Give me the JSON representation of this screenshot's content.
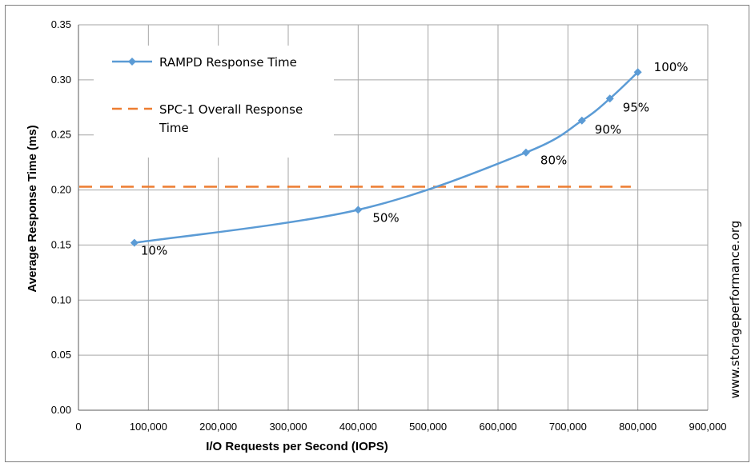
{
  "chart_data": {
    "type": "line",
    "title": "",
    "xlabel": "I/O Requests per Second (IOPS)",
    "ylabel": "Average Response Time (ms)",
    "xlim": [
      0,
      900000
    ],
    "ylim": [
      0,
      0.35
    ],
    "x_ticks": [
      "0",
      "100,000",
      "200,000",
      "300,000",
      "400,000",
      "500,000",
      "600,000",
      "700,000",
      "800,000",
      "900,000"
    ],
    "y_ticks": [
      "0.00",
      "0.05",
      "0.10",
      "0.15",
      "0.20",
      "0.25",
      "0.30",
      "0.35"
    ],
    "grid": true,
    "legend_position": "top-left",
    "series": [
      {
        "name": "RAMPD Response Time",
        "color": "#5b9bd5",
        "marker": "diamond",
        "points": [
          {
            "x": 80000,
            "y": 0.152,
            "label": "10%"
          },
          {
            "x": 400000,
            "y": 0.182,
            "label": "50%"
          },
          {
            "x": 640000,
            "y": 0.234,
            "label": "80%"
          },
          {
            "x": 720000,
            "y": 0.263,
            "label": "90%"
          },
          {
            "x": 760000,
            "y": 0.283,
            "label": "95%"
          },
          {
            "x": 800000,
            "y": 0.307,
            "label": "100%"
          }
        ]
      },
      {
        "name": "SPC-1 Overall Response Time",
        "color": "#ed7d31",
        "style": "dashed",
        "x_range": [
          0,
          790000
        ],
        "y": 0.203
      }
    ]
  },
  "legend": {
    "series1_label": "RAMPD Response Time",
    "series2_line1": "SPC-1 Overall Response",
    "series2_line2": "Time"
  },
  "watermark": "www.storageperformance.org"
}
